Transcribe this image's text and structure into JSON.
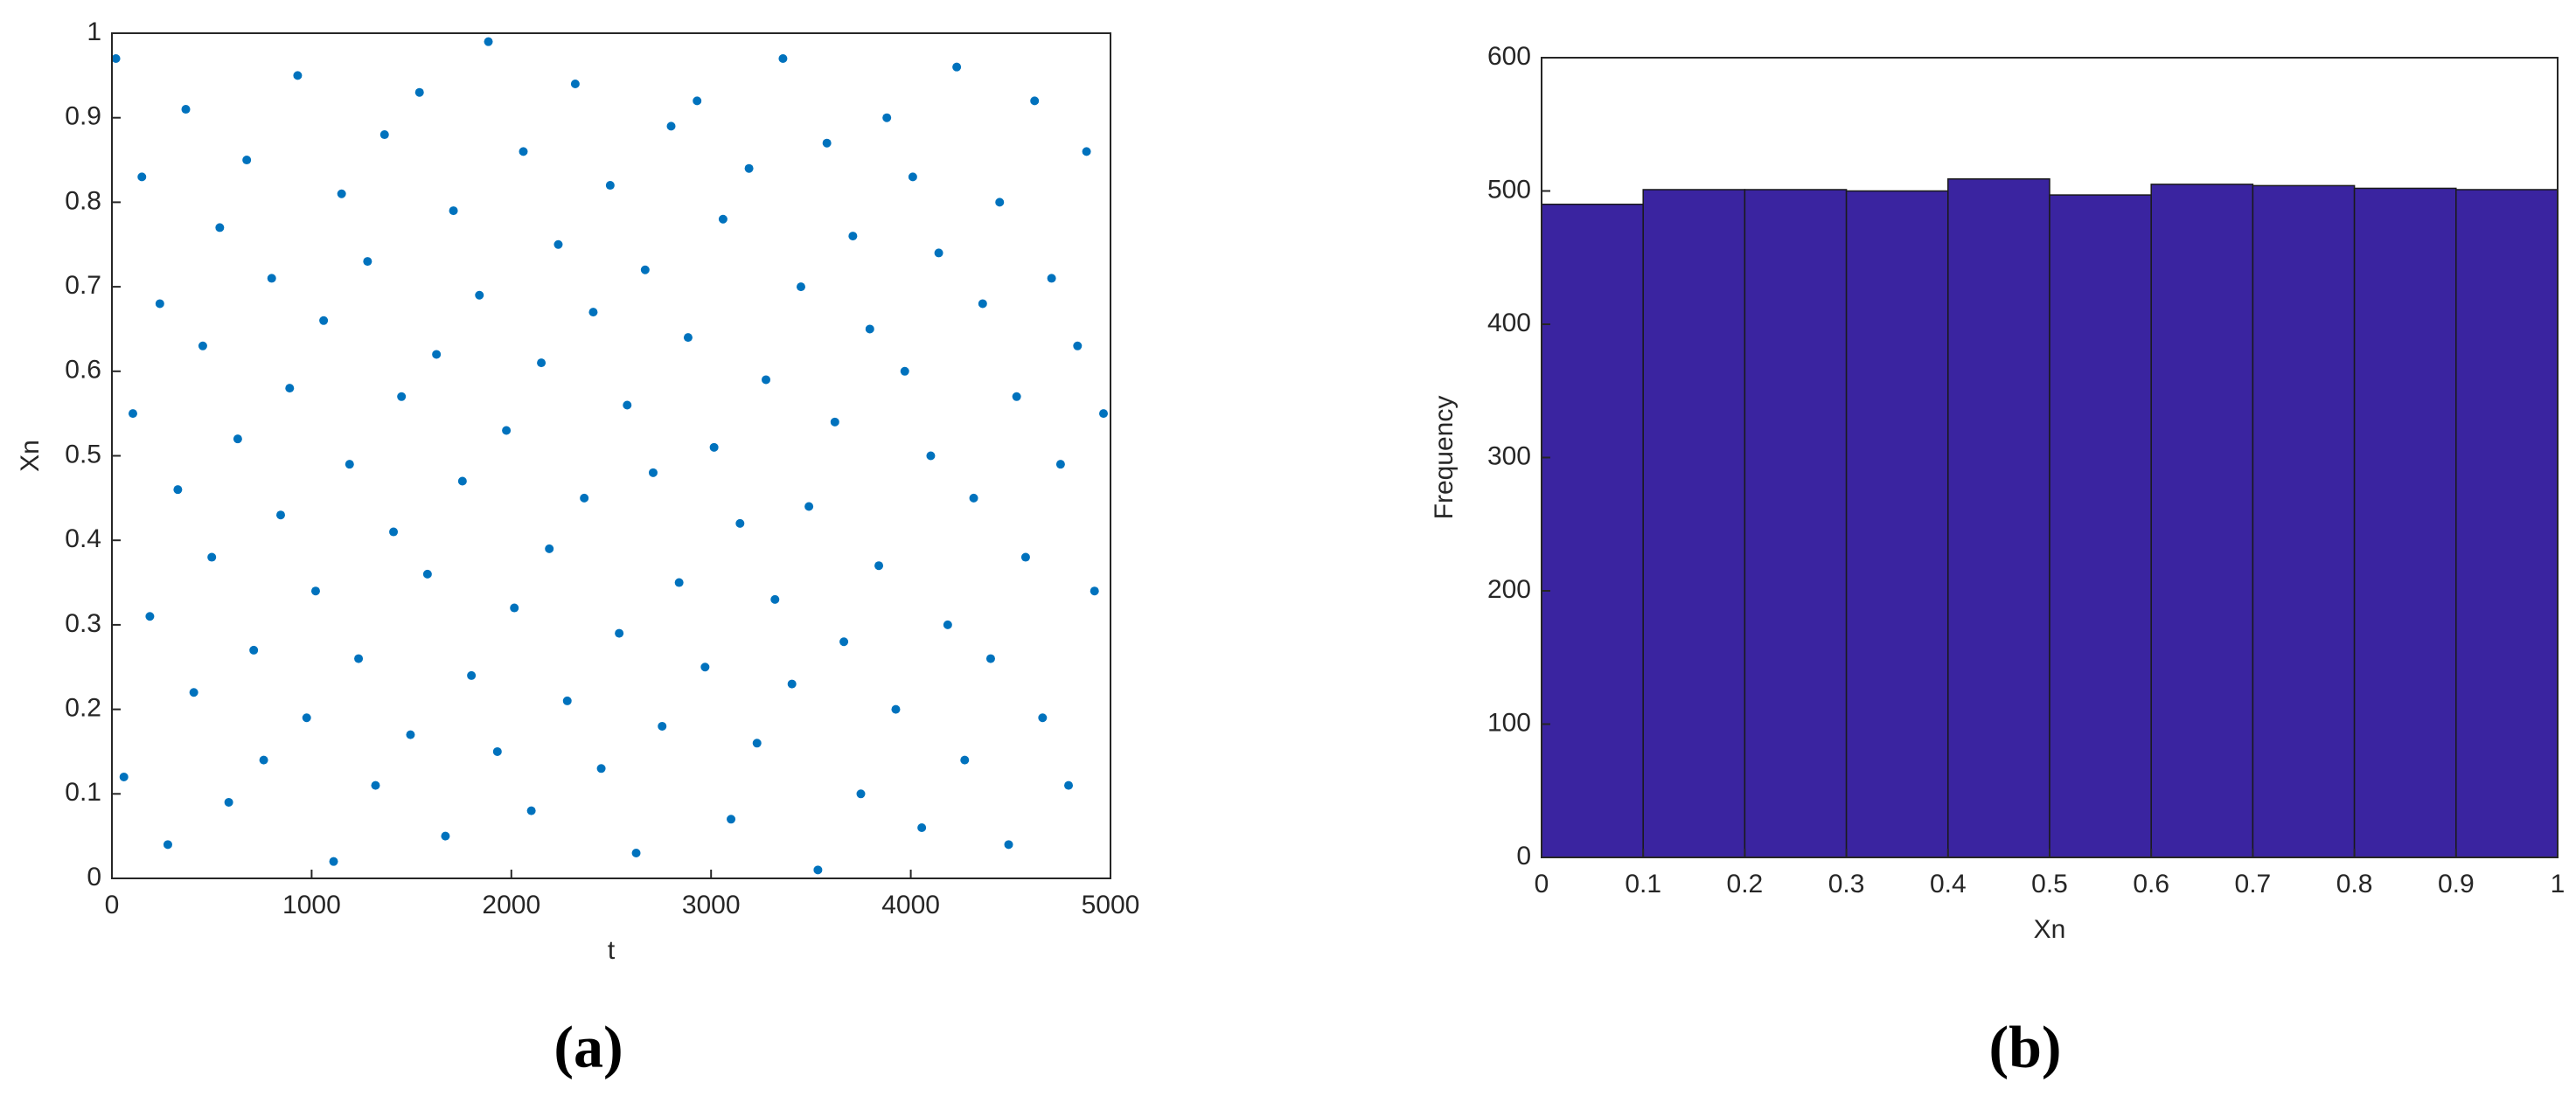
{
  "chart_data": [
    {
      "type": "scatter",
      "caption": "(a)",
      "x_label": "t",
      "y_label": "Xn",
      "color": "#0072bd",
      "x": [
        20,
        60,
        105,
        150,
        190,
        240,
        280,
        330,
        370,
        410,
        455,
        500,
        540,
        585,
        630,
        675,
        710,
        760,
        800,
        845,
        890,
        930,
        975,
        1020,
        1060,
        1110,
        1150,
        1190,
        1235,
        1280,
        1320,
        1365,
        1410,
        1450,
        1495,
        1540,
        1580,
        1625,
        1670,
        1710,
        1755,
        1800,
        1840,
        1885,
        1930,
        1975,
        2015,
        2060,
        2100,
        2150,
        2190,
        2235,
        2280,
        2320,
        2365,
        2410,
        2450,
        2495,
        2540,
        2580,
        2625,
        2670,
        2710,
        2755,
        2800,
        2840,
        2885,
        2930,
        2970,
        3015,
        3060,
        3100,
        3145,
        3190,
        3230,
        3275,
        3320,
        3360,
        3405,
        3450,
        3490,
        3535,
        3580,
        3620,
        3665,
        3710,
        3750,
        3795,
        3840,
        3880,
        3925,
        3970,
        4010,
        4055,
        4100,
        4140,
        4185,
        4230,
        4270,
        4315,
        4360,
        4400,
        4445,
        4490,
        4530,
        4575,
        4620,
        4660,
        4705,
        4750,
        4790,
        4835,
        4880,
        4920,
        4965
      ],
      "values": [
        0.97,
        0.12,
        0.55,
        0.83,
        0.31,
        0.68,
        0.04,
        0.46,
        0.91,
        0.22,
        0.63,
        0.38,
        0.77,
        0.09,
        0.52,
        0.85,
        0.27,
        0.14,
        0.71,
        0.43,
        0.58,
        0.95,
        0.19,
        0.34,
        0.66,
        0.02,
        0.81,
        0.49,
        0.26,
        0.73,
        0.11,
        0.88,
        0.41,
        0.57,
        0.17,
        0.93,
        0.36,
        0.62,
        0.05,
        0.79,
        0.47,
        0.24,
        0.69,
        0.99,
        0.15,
        0.53,
        0.32,
        0.86,
        0.08,
        0.61,
        0.39,
        0.75,
        0.21,
        0.94,
        0.45,
        0.67,
        0.13,
        0.82,
        0.29,
        0.56,
        0.03,
        0.72,
        0.48,
        0.18,
        0.89,
        0.35,
        0.64,
        0.92,
        0.25,
        0.51,
        0.78,
        0.07,
        0.42,
        0.84,
        0.16,
        0.59,
        0.33,
        0.97,
        0.23,
        0.7,
        0.44,
        0.01,
        0.87,
        0.54,
        0.28,
        0.76,
        0.1,
        0.65,
        0.37,
        0.9,
        0.2,
        0.6,
        0.83,
        0.06,
        0.5,
        0.74,
        0.3,
        0.96,
        0.14,
        0.45,
        0.68,
        0.26,
        0.8,
        0.04,
        0.57,
        0.38,
        0.92,
        0.19,
        0.71,
        0.49,
        0.11,
        0.63,
        0.86,
        0.34,
        0.55
      ],
      "xlim": [
        0,
        5000
      ],
      "xticks": [
        0,
        1000,
        2000,
        3000,
        4000,
        5000
      ],
      "ylim": [
        0,
        1
      ],
      "yticks": [
        0,
        0.1,
        0.2,
        0.3,
        0.4,
        0.5,
        0.6,
        0.7,
        0.8,
        0.9,
        1
      ]
    },
    {
      "type": "histogram",
      "caption": "(b)",
      "x_label": "Xn",
      "y_label": "Frequency",
      "color": "#3a24a0",
      "bins": [
        0,
        0.1,
        0.2,
        0.3,
        0.4,
        0.5,
        0.6,
        0.7,
        0.8,
        0.9,
        1
      ],
      "values": [
        490,
        501,
        501,
        500,
        509,
        497,
        505,
        504,
        502,
        501
      ],
      "xlim": [
        0,
        1
      ],
      "xticks": [
        0,
        0.1,
        0.2,
        0.3,
        0.4,
        0.5,
        0.6,
        0.7,
        0.8,
        0.9,
        1
      ],
      "ylim": [
        0,
        600
      ],
      "yticks": [
        0,
        100,
        200,
        300,
        400,
        500,
        600
      ]
    }
  ]
}
